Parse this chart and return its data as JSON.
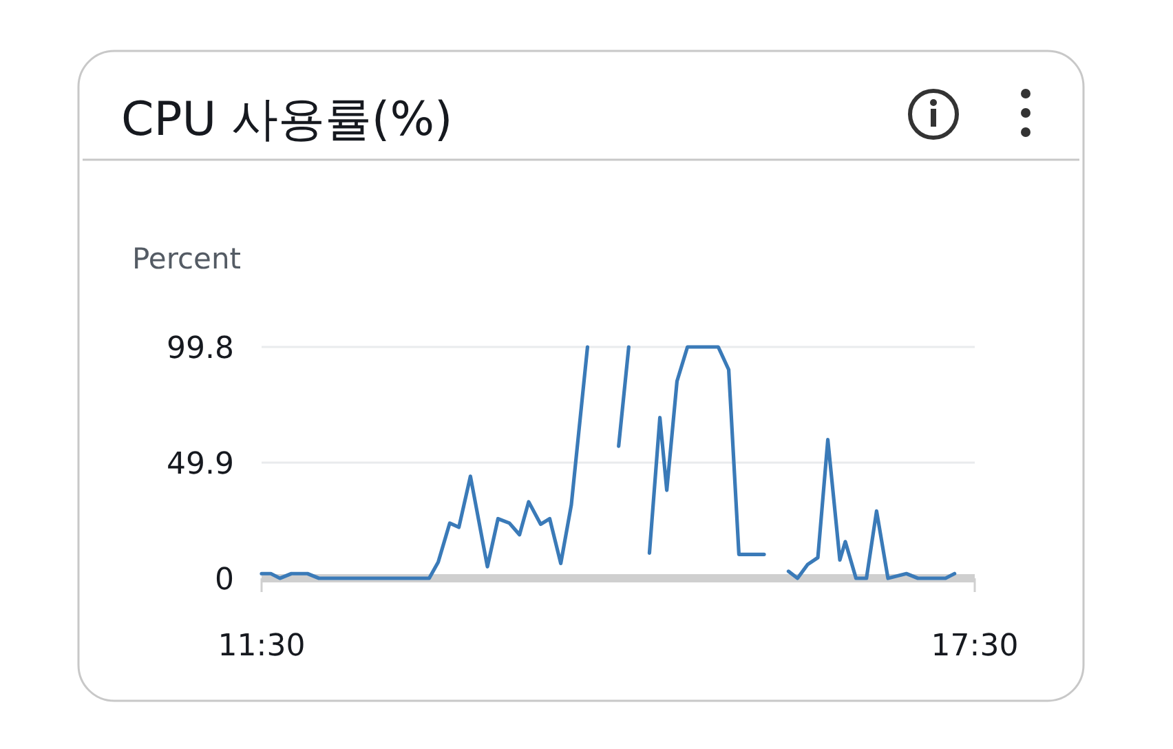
{
  "chart_data": {
    "type": "line",
    "title": "CPU 사용률(%)",
    "ylabel": "Percent",
    "series": [
      {
        "color": "#3a7ab8",
        "x": [
          11.5,
          11.578,
          11.654,
          11.751,
          11.886,
          11.983,
          12.91,
          12.986,
          13.083,
          13.16,
          13.257,
          13.4,
          13.489,
          13.585,
          13.67,
          13.747,
          13.848,
          13.924,
          14.017,
          14.106,
          14.242
        ],
        "values": [
          2,
          2,
          0,
          2,
          2,
          0,
          0,
          7,
          23.8,
          22,
          44,
          5,
          25.7,
          23.8,
          18.8,
          33,
          23.3,
          25.7,
          6.4,
          31.7,
          99.8
        ]
      },
      {
        "color": "#3a7ab8",
        "x": [
          14.504,
          14.589
        ],
        "values": [
          57,
          99.8
        ]
      },
      {
        "color": "#3a7ab8",
        "x": [
          14.763,
          14.851,
          14.909,
          14.995,
          15.083,
          15.342,
          15.43,
          15.516,
          15.728
        ],
        "values": [
          10.9,
          69.3,
          38,
          85,
          99.8,
          99.8,
          90,
          10.3,
          10.3
        ]
      },
      {
        "color": "#3a7ab8",
        "x": [
          15.933,
          16.009,
          16.095,
          16.18,
          16.264,
          16.365,
          16.411,
          16.501,
          16.589,
          16.674,
          16.77,
          16.925,
          17.022,
          17.254,
          17.33
        ],
        "values": [
          3,
          0,
          6,
          8.9,
          59.8,
          7.9,
          15.8,
          0,
          0,
          29,
          0,
          2,
          0,
          0,
          2
        ]
      }
    ],
    "xlim": [
      11.5,
      17.5
    ],
    "xticks": [
      {
        "value": 11.5,
        "label": "11:30"
      },
      {
        "value": 17.5,
        "label": "17:30"
      }
    ],
    "ylim": [
      0,
      99.8
    ],
    "yticks": [
      0,
      49.9,
      99.8
    ],
    "grid": "y",
    "marker": "none",
    "line_style": "solid"
  }
}
